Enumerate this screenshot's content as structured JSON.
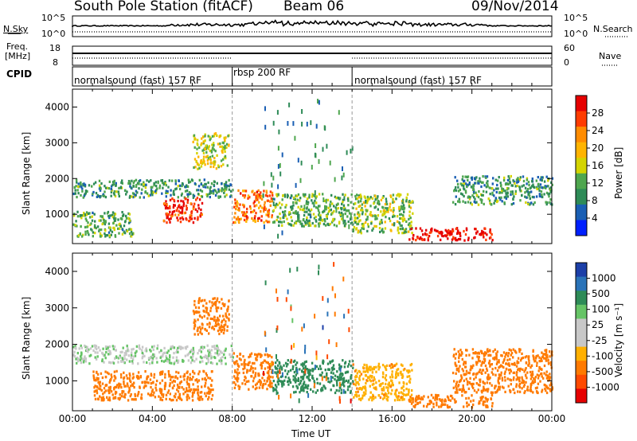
{
  "header": {
    "title": "South Pole Station (fitACF)",
    "beam": "Beam 06",
    "date": "09/Nov/2014"
  },
  "strips": {
    "nsky_label": "N.Sky",
    "nsky_ticks": [
      "10^5",
      "10^0"
    ],
    "nsearch_label": "N.Search",
    "nsearch_ticks": [
      "10^5",
      "10^0"
    ],
    "freq_label_1": "Freq.",
    "freq_label_2": "[MHz]",
    "freq_ticks": [
      "18",
      "8"
    ],
    "nave_label": "Nave",
    "nave_ticks": [
      "60",
      "0"
    ],
    "cpid_label": "CPID",
    "cpid_segments": [
      {
        "label": "normalsound (fast) 157 RF",
        "start_hour": 0,
        "end_hour": 8
      },
      {
        "label": "rbsp 200 RF",
        "start_hour": 8,
        "end_hour": 14
      },
      {
        "label": "normalsound (fast) 157 RF",
        "start_hour": 14,
        "end_hour": 24
      }
    ]
  },
  "colorbars": {
    "power": {
      "title": "Power [dB]",
      "ticks": [
        "28",
        "24",
        "20",
        "16",
        "12",
        "8",
        "4"
      ],
      "colors": [
        "#e60000",
        "#ff3c00",
        "#ff8c00",
        "#ffb400",
        "#d4d400",
        "#4ea64e",
        "#2e8b57",
        "#1a5fb4",
        "#0020ff"
      ]
    },
    "velocity": {
      "title": "Velocity [m s⁻¹]",
      "ticks": [
        "1000",
        "500",
        "100",
        "25",
        "-25",
        "-100",
        "-500",
        "-1000"
      ],
      "colors": [
        "#1c3fa8",
        "#2a73b8",
        "#2e8b57",
        "#66c466",
        "#c8c8c8",
        "#c8c8c8",
        "#ffb000",
        "#ff7a00",
        "#ff4a00",
        "#e60000"
      ]
    }
  },
  "chart_data": [
    {
      "type": "heatmap",
      "title": "Power",
      "ylabel": "Slant Range [km]",
      "xlabel": "Time UT",
      "x_ticks": [
        "00:00",
        "04:00",
        "08:00",
        "12:00",
        "16:00",
        "20:00",
        "00:00"
      ],
      "y_ticks": [
        "1000",
        "2000",
        "3000",
        "4000"
      ],
      "xlim_hours": [
        0,
        24
      ],
      "ylim_km": [
        180,
        4500
      ],
      "regions": [
        {
          "t0": 0.0,
          "t1": 8.0,
          "r0": 1500,
          "r1": 2000,
          "value": 8
        },
        {
          "t0": 0.0,
          "t1": 3.0,
          "r0": 400,
          "r1": 1100,
          "value": 10
        },
        {
          "t0": 4.5,
          "t1": 6.5,
          "r0": 800,
          "r1": 1500,
          "value": 26
        },
        {
          "t0": 6.0,
          "t1": 7.8,
          "r0": 2300,
          "r1": 3300,
          "value": 14
        },
        {
          "t0": 8.0,
          "t1": 10.0,
          "r0": 800,
          "r1": 1700,
          "value": 22
        },
        {
          "t0": 10.0,
          "t1": 14.0,
          "r0": 700,
          "r1": 1600,
          "value": 10
        },
        {
          "t0": 14.0,
          "t1": 17.0,
          "r0": 500,
          "r1": 1600,
          "value": 12
        },
        {
          "t0": 16.8,
          "t1": 21.0,
          "r0": 300,
          "r1": 650,
          "value": 28
        },
        {
          "t0": 19.0,
          "t1": 24.0,
          "r0": 1300,
          "r1": 2100,
          "value": 8
        }
      ]
    },
    {
      "type": "heatmap",
      "title": "Velocity",
      "ylabel": "Slant Range [km]",
      "xlabel": "Time UT",
      "x_ticks": [
        "00:00",
        "04:00",
        "08:00",
        "12:00",
        "16:00",
        "20:00",
        "00:00"
      ],
      "y_ticks": [
        "1000",
        "2000",
        "3000",
        "4000"
      ],
      "xlim_hours": [
        0,
        24
      ],
      "ylim_km": [
        180,
        4500
      ],
      "regions": [
        {
          "t0": 0.0,
          "t1": 8.0,
          "r0": 1500,
          "r1": 2000,
          "value": 0
        },
        {
          "t0": 1.0,
          "t1": 7.0,
          "r0": 500,
          "r1": 1300,
          "value": -300
        },
        {
          "t0": 6.0,
          "t1": 7.8,
          "r0": 2300,
          "r1": 3300,
          "value": -300
        },
        {
          "t0": 8.0,
          "t1": 10.0,
          "r0": 800,
          "r1": 1800,
          "value": -300
        },
        {
          "t0": 10.0,
          "t1": 14.0,
          "r0": 700,
          "r1": 1600,
          "value": 150
        },
        {
          "t0": 14.0,
          "t1": 17.0,
          "r0": 500,
          "r1": 1500,
          "value": -150
        },
        {
          "t0": 16.8,
          "t1": 21.0,
          "r0": 300,
          "r1": 650,
          "value": -300
        },
        {
          "t0": 19.0,
          "t1": 24.0,
          "r0": 700,
          "r1": 1900,
          "value": -300
        }
      ]
    }
  ]
}
